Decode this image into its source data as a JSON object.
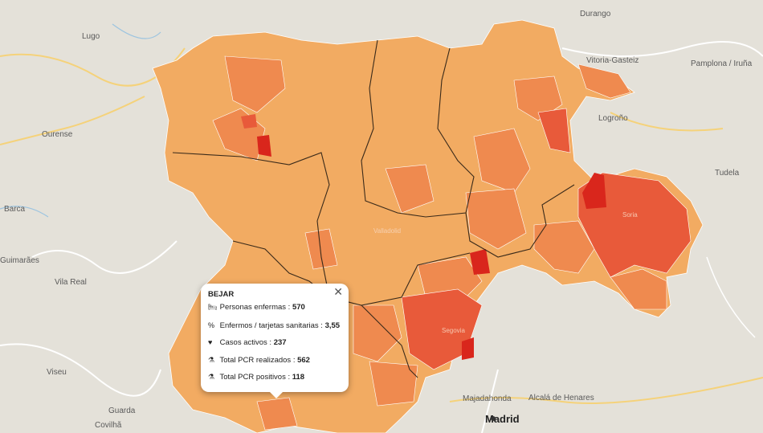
{
  "map": {
    "place_labels": [
      "Durango",
      "Lugo",
      "Vitoria-Gasteiz",
      "Pamplona / Iruña",
      "Ourense",
      "Logroño",
      "Tudela",
      "Vila Real",
      "Viseu",
      "Guarda",
      "Majadahonda",
      "Alcalá de Henares",
      "Madrid",
      "Covilhã",
      "Barca",
      "Guimarães",
      "Soria",
      "Segovia",
      "Valladolid"
    ],
    "colors": {
      "base": "#f2ab62",
      "mid": "#ef8a4f",
      "high": "#e85a3a",
      "max": "#d9261c",
      "background": "#e4e1d9"
    }
  },
  "popup": {
    "title": "BEJAR",
    "close": "✕",
    "rows": [
      {
        "icon": "bed-icon",
        "glyph": "🛏",
        "label": "Personas enfermas :",
        "value": "570"
      },
      {
        "icon": "percent-icon",
        "glyph": "%",
        "label": "Enfermos / tarjetas sanitarias :",
        "value": "3,55"
      },
      {
        "icon": "heartbeat-icon",
        "glyph": "♥",
        "label": "Casos activos :",
        "value": "237"
      },
      {
        "icon": "flask-icon",
        "glyph": "⚗",
        "label": "Total PCR realizados :",
        "value": "562"
      },
      {
        "icon": "flask-icon",
        "glyph": "⚗",
        "label": "Total PCR positivos :",
        "value": "118"
      }
    ]
  }
}
